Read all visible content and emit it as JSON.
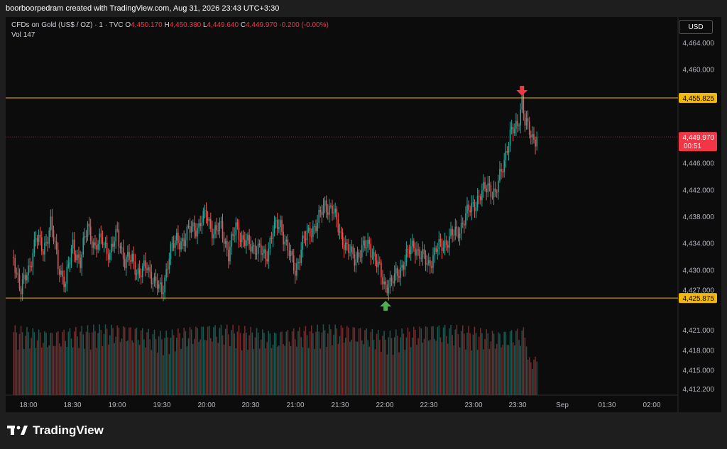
{
  "caption": "boorboorpedram created with TradingView.com, Aug 31, 2026 23:43 UTC+3:30",
  "legend": {
    "symbol": "CFDs on Gold (US$ / OZ) · 1 · TVC",
    "o_label": "O",
    "o_value": "4,450.170",
    "h_label": "H",
    "h_value": "4,450.380",
    "l_label": "L",
    "l_value": "4,449.640",
    "c_label": "C",
    "c_value": "4,449.970",
    "change": "-0.200 (-0.00%)",
    "vol_label": "Vol",
    "vol_value": "147"
  },
  "currency_button": "USD",
  "brand": "TradingView",
  "colors": {
    "up": "#26a69a",
    "down": "#ef5350",
    "level": "#f0b90b",
    "last": "#f23645",
    "arrow_down": "#f23645",
    "arrow_up": "#4caf50"
  },
  "chart_data": {
    "type": "candlestick",
    "y_ticks": [
      "4,464.000",
      "4,460.000",
      "4,456.000",
      "4,449.970",
      "4,446.000",
      "4,442.000",
      "4,438.000",
      "4,434.000",
      "4,430.000",
      "4,427.000",
      "4,425.875",
      "4,421.000",
      "4,418.000",
      "4,415.000",
      "4,412.200"
    ],
    "x_ticks": [
      "18:00",
      "18:30",
      "19:00",
      "19:30",
      "20:00",
      "20:30",
      "21:00",
      "21:30",
      "22:00",
      "22:30",
      "23:00",
      "23:30",
      "Sep",
      "01:30",
      "02:00"
    ],
    "levels": [
      {
        "value": 4455.825,
        "label": "4,455.825"
      },
      {
        "value": 4425.875,
        "label": "4,425.875"
      }
    ],
    "last_price": {
      "value": 4449.97,
      "label": "4,449.970",
      "countdown": "00:51"
    },
    "markers": [
      {
        "type": "arrow-down",
        "time": "23:33",
        "price": 4455.825
      },
      {
        "type": "arrow-up",
        "time": "22:01",
        "price": 4425.875
      }
    ],
    "price_path": [
      [
        "17:50",
        4432
      ],
      [
        "17:55",
        4427
      ],
      [
        "18:00",
        4430
      ],
      [
        "18:05",
        4435
      ],
      [
        "18:10",
        4433
      ],
      [
        "18:15",
        4437
      ],
      [
        "18:20",
        4431
      ],
      [
        "18:25",
        4428
      ],
      [
        "18:30",
        4434
      ],
      [
        "18:35",
        4431
      ],
      [
        "18:40",
        4437
      ],
      [
        "18:45",
        4433
      ],
      [
        "18:50",
        4435
      ],
      [
        "18:55",
        4432
      ],
      [
        "19:00",
        4436
      ],
      [
        "19:05",
        4431
      ],
      [
        "19:10",
        4432
      ],
      [
        "19:15",
        4429
      ],
      [
        "19:20",
        4431
      ],
      [
        "19:25",
        4428
      ],
      [
        "19:30",
        4427
      ],
      [
        "19:35",
        4432
      ],
      [
        "19:40",
        4435
      ],
      [
        "19:45",
        4434
      ],
      [
        "19:50",
        4437
      ],
      [
        "19:55",
        4436
      ],
      [
        "20:00",
        4439
      ],
      [
        "20:05",
        4435
      ],
      [
        "20:10",
        4437
      ],
      [
        "20:15",
        4432
      ],
      [
        "20:20",
        4437
      ],
      [
        "20:25",
        4434
      ],
      [
        "20:30",
        4434
      ],
      [
        "20:35",
        4433
      ],
      [
        "20:40",
        4432
      ],
      [
        "20:45",
        4436
      ],
      [
        "20:50",
        4437
      ],
      [
        "20:55",
        4433
      ],
      [
        "21:00",
        4430
      ],
      [
        "21:05",
        4434
      ],
      [
        "21:10",
        4436
      ],
      [
        "21:15",
        4437
      ],
      [
        "21:20",
        4440
      ],
      [
        "21:25",
        4439
      ],
      [
        "21:30",
        4436
      ],
      [
        "21:35",
        4433
      ],
      [
        "21:40",
        4432
      ],
      [
        "21:45",
        4433
      ],
      [
        "21:50",
        4434
      ],
      [
        "21:55",
        4431
      ],
      [
        "22:00",
        4428
      ],
      [
        "22:05",
        4428
      ],
      [
        "22:10",
        4430
      ],
      [
        "22:15",
        4432
      ],
      [
        "22:20",
        4434
      ],
      [
        "22:25",
        4432
      ],
      [
        "22:30",
        4431
      ],
      [
        "22:35",
        4433
      ],
      [
        "22:40",
        4434
      ],
      [
        "22:45",
        4435
      ],
      [
        "22:50",
        4436
      ],
      [
        "22:55",
        4438
      ],
      [
        "23:00",
        4440
      ],
      [
        "23:05",
        4441
      ],
      [
        "23:10",
        4443
      ],
      [
        "23:15",
        4441
      ],
      [
        "23:20",
        4446
      ],
      [
        "23:25",
        4450
      ],
      [
        "23:30",
        4452
      ],
      [
        "23:33",
        4455.6
      ],
      [
        "23:35",
        4452
      ],
      [
        "23:40",
        4450
      ],
      [
        "23:43",
        4449.97
      ]
    ]
  }
}
